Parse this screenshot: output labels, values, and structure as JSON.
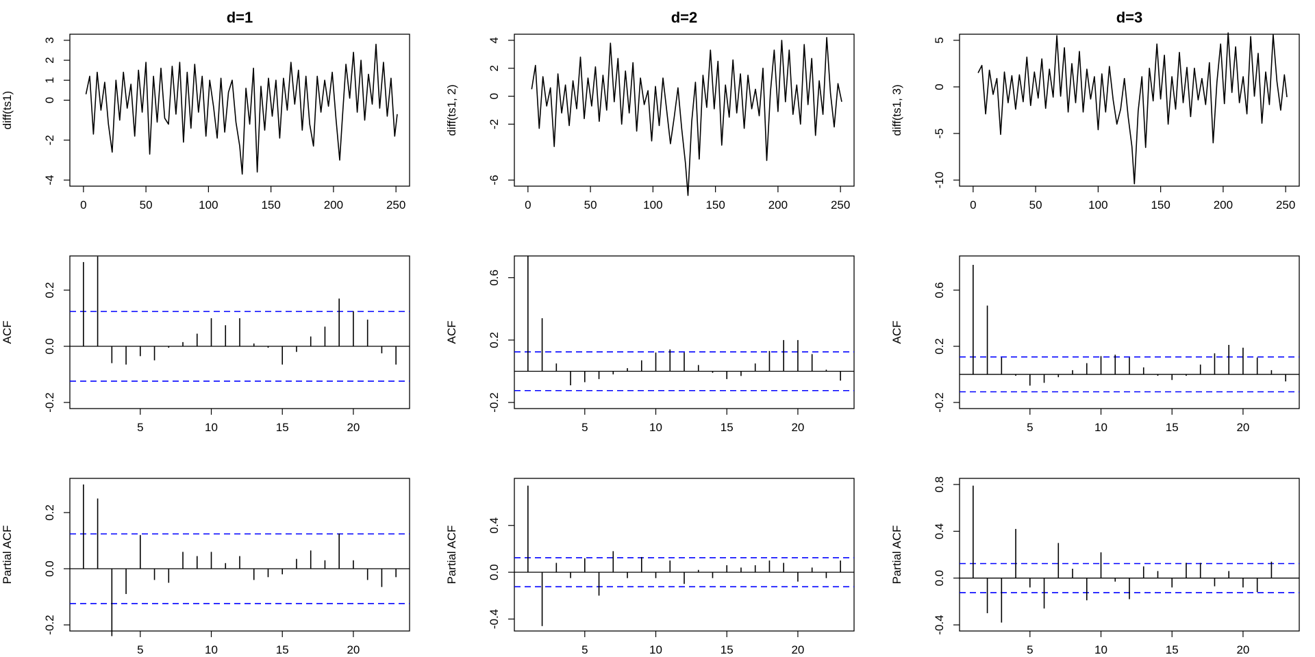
{
  "chart_data": [
    {
      "type": "line",
      "title": "d=1",
      "xlabel": "",
      "ylabel": "diff(ts1)",
      "xlim": [
        0,
        250
      ],
      "ylim": [
        -4,
        3
      ],
      "xticks": [
        0,
        50,
        100,
        150,
        200,
        250
      ],
      "yticks": [
        -4,
        -2,
        0,
        1,
        2,
        3
      ],
      "xtick_labels": [
        "0",
        "50",
        "100",
        "150",
        "200",
        "250"
      ],
      "ytick_labels": [
        "-4",
        "-2",
        "0",
        "1",
        "2",
        "3"
      ],
      "series_color": "#000000",
      "x": [
        2,
        5,
        8,
        11,
        14,
        17,
        20,
        23,
        26,
        29,
        32,
        35,
        38,
        41,
        44,
        47,
        50,
        53,
        56,
        59,
        62,
        65,
        68,
        71,
        74,
        77,
        80,
        83,
        86,
        89,
        92,
        95,
        98,
        101,
        104,
        107,
        110,
        113,
        116,
        119,
        122,
        125,
        127,
        130,
        133,
        136,
        139,
        142,
        145,
        148,
        151,
        154,
        157,
        160,
        163,
        166,
        169,
        172,
        175,
        178,
        181,
        184,
        187,
        190,
        193,
        196,
        199,
        202,
        205,
        207,
        210,
        213,
        216,
        219,
        222,
        225,
        228,
        231,
        234,
        237,
        240,
        243,
        246,
        249,
        251
      ],
      "y": [
        0.3,
        1.2,
        -1.7,
        1.4,
        -0.5,
        0.9,
        -1.2,
        -2.6,
        1.0,
        -1.0,
        1.4,
        -0.4,
        0.8,
        -1.8,
        1.5,
        -0.6,
        1.9,
        -2.7,
        1.2,
        -1.1,
        1.6,
        -0.9,
        -1.2,
        1.7,
        -0.7,
        1.9,
        -2.1,
        1.4,
        -1.4,
        1.8,
        -0.6,
        1.2,
        -1.8,
        1.0,
        -0.3,
        -1.9,
        1.1,
        -1.6,
        0.4,
        1.0,
        -1.1,
        -2.3,
        -3.7,
        0.6,
        -1.2,
        1.6,
        -3.6,
        0.7,
        -1.5,
        1.1,
        -0.8,
        1.0,
        -1.9,
        1.1,
        -0.5,
        1.9,
        -0.2,
        1.5,
        -1.5,
        1.2,
        -1.2,
        -2.3,
        1.2,
        -0.6,
        1.0,
        -0.3,
        1.4,
        -0.9,
        -3.0,
        -1.0,
        1.8,
        0.1,
        2.4,
        -0.6,
        2.0,
        -1.0,
        1.3,
        -0.2,
        2.8,
        -0.4,
        1.9,
        -0.8,
        1.1,
        -1.8,
        -0.7
      ]
    },
    {
      "type": "line",
      "title": "d=2",
      "xlabel": "",
      "ylabel": "diff(ts1, 2)",
      "xlim": [
        0,
        250
      ],
      "ylim": [
        -6,
        4
      ],
      "xticks": [
        0,
        50,
        100,
        150,
        200,
        250
      ],
      "yticks": [
        -6,
        -2,
        0,
        2,
        4
      ],
      "xtick_labels": [
        "0",
        "50",
        "100",
        "150",
        "200",
        "250"
      ],
      "ytick_labels": [
        "-6",
        "-2",
        "0",
        "2",
        "4"
      ],
      "series_color": "#000000",
      "x": [
        3,
        6,
        9,
        12,
        15,
        18,
        21,
        24,
        27,
        30,
        33,
        36,
        39,
        42,
        45,
        48,
        51,
        54,
        57,
        60,
        63,
        66,
        69,
        72,
        75,
        78,
        81,
        84,
        87,
        90,
        93,
        96,
        99,
        102,
        105,
        108,
        111,
        114,
        117,
        120,
        123,
        126,
        128,
        131,
        134,
        137,
        140,
        143,
        146,
        149,
        152,
        155,
        158,
        161,
        164,
        167,
        170,
        173,
        176,
        179,
        182,
        185,
        188,
        191,
        194,
        197,
        200,
        203,
        206,
        209,
        212,
        215,
        218,
        221,
        224,
        227,
        230,
        233,
        236,
        239,
        242,
        245,
        248,
        251
      ],
      "y": [
        0.5,
        2.2,
        -2.3,
        1.4,
        -0.7,
        0.6,
        -3.6,
        1.6,
        -1.2,
        0.8,
        -2.1,
        1.1,
        -0.9,
        2.8,
        -1.6,
        1.3,
        -0.7,
        2.1,
        -1.8,
        1.5,
        -1.0,
        3.8,
        -0.4,
        2.7,
        -2.0,
        1.8,
        -1.2,
        2.4,
        -2.5,
        1.3,
        -0.6,
        0.4,
        -3.2,
        0.7,
        -2.1,
        1.3,
        -1.0,
        -3.4,
        -1.5,
        0.6,
        -2.3,
        -4.8,
        -7.1,
        -1.8,
        1.0,
        -4.5,
        1.5,
        -0.8,
        3.3,
        -0.9,
        2.5,
        -3.5,
        0.8,
        -1.5,
        2.6,
        -1.2,
        1.6,
        -2.3,
        1.5,
        -0.9,
        0.5,
        -1.4,
        2.0,
        -4.6,
        0.3,
        3.3,
        -1.1,
        4.0,
        -0.4,
        3.3,
        -1.3,
        0.8,
        -2.0,
        3.7,
        -0.6,
        2.7,
        -2.8,
        1.1,
        -1.3,
        4.2,
        0.2,
        -2.2,
        0.9,
        -0.4
      ]
    },
    {
      "type": "line",
      "title": "d=3",
      "xlabel": "",
      "ylabel": "diff(ts1, 3)",
      "xlim": [
        0,
        250
      ],
      "ylim": [
        -10,
        5
      ],
      "xticks": [
        0,
        50,
        100,
        150,
        200,
        250
      ],
      "yticks": [
        -10,
        -5,
        0,
        5
      ],
      "xtick_labels": [
        "0",
        "50",
        "100",
        "150",
        "200",
        "250"
      ],
      "ytick_labels": [
        "-10",
        "-5",
        "0",
        "5"
      ],
      "series_color": "#000000",
      "x": [
        4,
        7,
        10,
        13,
        16,
        19,
        22,
        25,
        28,
        31,
        34,
        37,
        40,
        43,
        46,
        49,
        52,
        55,
        58,
        61,
        64,
        67,
        70,
        73,
        76,
        79,
        82,
        85,
        88,
        91,
        94,
        97,
        100,
        103,
        106,
        109,
        112,
        115,
        118,
        121,
        124,
        127,
        129,
        132,
        135,
        138,
        141,
        144,
        147,
        150,
        153,
        156,
        159,
        162,
        165,
        168,
        171,
        174,
        177,
        180,
        183,
        186,
        189,
        192,
        195,
        198,
        201,
        204,
        207,
        210,
        213,
        216,
        219,
        222,
        225,
        228,
        231,
        234,
        237,
        240,
        243,
        246,
        249,
        251
      ],
      "y": [
        1.5,
        2.3,
        -2.9,
        1.8,
        -0.8,
        0.9,
        -5.1,
        1.6,
        -1.7,
        1.2,
        -2.4,
        1.3,
        -1.6,
        3.2,
        -2.0,
        1.6,
        -1.2,
        3.0,
        -2.3,
        1.9,
        -1.1,
        5.5,
        -1.0,
        4.2,
        -2.7,
        2.5,
        -1.7,
        3.8,
        -2.7,
        1.9,
        -1.3,
        1.1,
        -4.6,
        1.4,
        -2.7,
        2.2,
        -1.4,
        -4.0,
        -2.4,
        0.9,
        -3.2,
        -6.4,
        -10.4,
        -2.6,
        1.1,
        -6.5,
        2.0,
        -1.5,
        4.6,
        -1.3,
        3.4,
        -4.0,
        1.1,
        -2.4,
        3.7,
        -1.7,
        2.1,
        -3.2,
        2.0,
        -1.4,
        0.9,
        -1.9,
        2.6,
        -6.0,
        0.5,
        4.6,
        -1.8,
        5.8,
        -0.6,
        4.3,
        -1.7,
        1.1,
        -2.9,
        5.4,
        -1.0,
        3.6,
        -3.9,
        1.6,
        -1.9,
        5.6,
        0.6,
        -2.5,
        1.3,
        -1.1
      ]
    },
    {
      "type": "bar",
      "title": "",
      "xlabel": "",
      "ylabel": "ACF",
      "xlim": [
        1,
        23
      ],
      "ylim": [
        -0.2,
        0.3
      ],
      "xticks": [
        5,
        10,
        15,
        20
      ],
      "yticks": [
        -0.2,
        0.0,
        0.2
      ],
      "xtick_labels": [
        "5",
        "10",
        "15",
        "20"
      ],
      "ytick_labels": [
        "-0.2",
        "0.0",
        "0.2"
      ],
      "ci": 0.124,
      "ci_color": "#0000ff",
      "lags": [
        1,
        2,
        3,
        4,
        5,
        6,
        7,
        8,
        9,
        10,
        11,
        12,
        13,
        14,
        15,
        16,
        17,
        18,
        19,
        20,
        21,
        22,
        23
      ],
      "values": [
        0.3,
        0.32,
        -0.06,
        -0.065,
        -0.035,
        -0.05,
        -0.005,
        0.015,
        0.045,
        0.1,
        0.075,
        0.1,
        0.01,
        -0.005,
        -0.065,
        -0.02,
        0.035,
        0.07,
        0.17,
        0.125,
        0.095,
        -0.025,
        -0.065
      ]
    },
    {
      "type": "bar",
      "title": "",
      "xlabel": "",
      "ylabel": "ACF",
      "xlim": [
        1,
        23
      ],
      "ylim": [
        -0.2,
        0.7
      ],
      "xticks": [
        5,
        10,
        15,
        20
      ],
      "yticks": [
        -0.2,
        0.2,
        0.6
      ],
      "xtick_labels": [
        "5",
        "10",
        "15",
        "20"
      ],
      "ytick_labels": [
        "-0.2",
        "0.2",
        "0.6"
      ],
      "ci": 0.124,
      "ci_color": "#0000ff",
      "lags": [
        1,
        2,
        3,
        4,
        5,
        6,
        7,
        8,
        9,
        10,
        11,
        12,
        13,
        14,
        15,
        16,
        17,
        18,
        19,
        20,
        21,
        22,
        23
      ],
      "values": [
        0.74,
        0.34,
        0.05,
        -0.09,
        -0.07,
        -0.05,
        -0.02,
        0.02,
        0.07,
        0.12,
        0.14,
        0.12,
        0.04,
        -0.01,
        -0.05,
        -0.03,
        0.05,
        0.13,
        0.2,
        0.2,
        0.11,
        0.01,
        -0.06
      ]
    },
    {
      "type": "bar",
      "title": "",
      "xlabel": "",
      "ylabel": "ACF",
      "xlim": [
        1,
        23
      ],
      "ylim": [
        -0.2,
        0.8
      ],
      "xticks": [
        5,
        10,
        15,
        20
      ],
      "yticks": [
        -0.2,
        0.2,
        0.6
      ],
      "xtick_labels": [
        "5",
        "10",
        "15",
        "20"
      ],
      "ytick_labels": [
        "-0.2",
        "0.2",
        "0.6"
      ],
      "ci": 0.124,
      "ci_color": "#0000ff",
      "lags": [
        1,
        2,
        3,
        4,
        5,
        6,
        7,
        8,
        9,
        10,
        11,
        12,
        13,
        14,
        15,
        16,
        17,
        18,
        19,
        20,
        21,
        22,
        23
      ],
      "values": [
        0.78,
        0.49,
        0.12,
        -0.01,
        -0.08,
        -0.06,
        -0.02,
        0.03,
        0.08,
        0.13,
        0.14,
        0.12,
        0.05,
        -0.01,
        -0.04,
        -0.01,
        0.07,
        0.15,
        0.21,
        0.19,
        0.12,
        0.03,
        -0.05
      ]
    },
    {
      "type": "bar",
      "title": "",
      "xlabel": "",
      "ylabel": "Partial ACF",
      "xlim": [
        1,
        23
      ],
      "ylim": [
        -0.2,
        0.3
      ],
      "xticks": [
        5,
        10,
        15,
        20
      ],
      "yticks": [
        -0.2,
        0.0,
        0.2
      ],
      "xtick_labels": [
        "5",
        "10",
        "15",
        "20"
      ],
      "ytick_labels": [
        "-0.2",
        "0.0",
        "0.2"
      ],
      "ci": 0.124,
      "ci_color": "#0000ff",
      "lags": [
        1,
        2,
        3,
        4,
        5,
        6,
        7,
        8,
        9,
        10,
        11,
        12,
        13,
        14,
        15,
        16,
        17,
        18,
        19,
        20,
        21,
        22,
        23
      ],
      "values": [
        0.3,
        0.25,
        -0.24,
        -0.09,
        0.12,
        -0.04,
        -0.05,
        0.06,
        0.045,
        0.06,
        0.02,
        0.045,
        -0.04,
        -0.03,
        -0.02,
        0.035,
        0.065,
        0.03,
        0.125,
        0.03,
        -0.04,
        -0.065,
        -0.03
      ]
    },
    {
      "type": "bar",
      "title": "",
      "xlabel": "",
      "ylabel": "Partial ACF",
      "xlim": [
        1,
        23
      ],
      "ylim": [
        -0.45,
        0.75
      ],
      "xticks": [
        5,
        10,
        15,
        20
      ],
      "yticks": [
        -0.4,
        0.0,
        0.4
      ],
      "xtick_labels": [
        "5",
        "10",
        "15",
        "20"
      ],
      "ytick_labels": [
        "-0.4",
        "0.0",
        "0.4"
      ],
      "ci": 0.124,
      "ci_color": "#0000ff",
      "lags": [
        1,
        2,
        3,
        4,
        5,
        6,
        7,
        8,
        9,
        10,
        11,
        12,
        13,
        14,
        15,
        16,
        17,
        18,
        19,
        20,
        21,
        22,
        23
      ],
      "values": [
        0.74,
        -0.46,
        0.08,
        -0.05,
        0.12,
        -0.2,
        0.18,
        -0.05,
        0.13,
        -0.05,
        0.1,
        -0.1,
        0.02,
        -0.05,
        0.06,
        0.04,
        0.06,
        0.1,
        0.08,
        -0.08,
        0.04,
        -0.05,
        0.1
      ]
    },
    {
      "type": "bar",
      "title": "",
      "xlabel": "",
      "ylabel": "Partial ACF",
      "xlim": [
        1,
        23
      ],
      "ylim": [
        -0.4,
        0.8
      ],
      "xticks": [
        5,
        10,
        15,
        20
      ],
      "yticks": [
        -0.4,
        0.0,
        0.4,
        0.8
      ],
      "xtick_labels": [
        "5",
        "10",
        "15",
        "20"
      ],
      "ytick_labels": [
        "-0.4",
        "0.0",
        "0.4",
        "0.8"
      ],
      "ci": 0.124,
      "ci_color": "#0000ff",
      "lags": [
        1,
        2,
        3,
        4,
        5,
        6,
        7,
        8,
        9,
        10,
        11,
        12,
        13,
        14,
        15,
        16,
        17,
        18,
        19,
        20,
        21,
        22,
        23
      ],
      "values": [
        0.79,
        -0.3,
        -0.38,
        0.42,
        -0.08,
        -0.26,
        0.3,
        0.08,
        -0.19,
        0.22,
        -0.03,
        -0.18,
        0.1,
        0.06,
        -0.08,
        0.13,
        0.13,
        -0.07,
        0.06,
        -0.08,
        -0.12,
        0.14,
        0.0
      ]
    }
  ]
}
